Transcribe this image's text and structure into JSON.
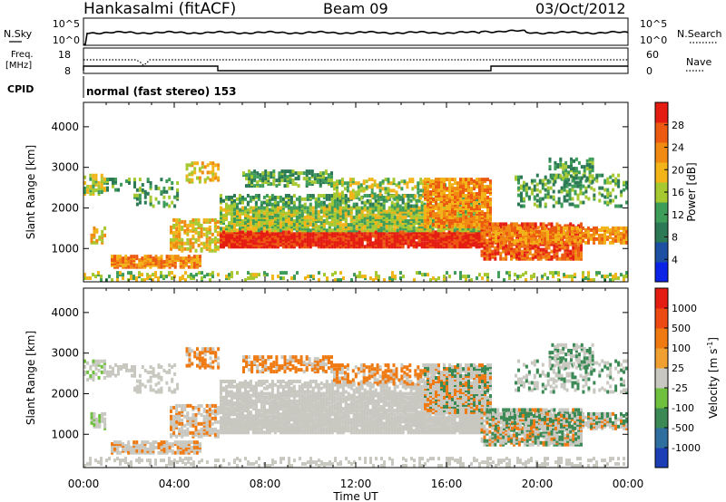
{
  "header": {
    "station": "Hankasalmi (fitACF)",
    "beam": "Beam 09",
    "date": "03/Oct/2012"
  },
  "strip_labels": {
    "nsky": "N.Sky",
    "nsearch": "N.Search",
    "freq_line1": "Freq.",
    "freq_line2": "[MHz]",
    "nave": "Nave",
    "cpid": "CPID",
    "mode": "normal (fast stereo) 153",
    "noise_ticks": [
      "10^5",
      "10^0"
    ],
    "freq_ticks": [
      "18",
      "8"
    ],
    "nave_ticks": [
      "60",
      "0"
    ]
  },
  "chart_data": [
    {
      "type": "heatmap",
      "name": "power",
      "ylabel": "Slant Range [km]",
      "xlabel": "",
      "x_ticks": [
        "00:00",
        "04:00",
        "08:00",
        "12:00",
        "16:00",
        "20:00",
        "00:00"
      ],
      "x_range_hours": [
        0,
        24
      ],
      "y_ticks": [
        1000,
        2000,
        3000,
        4000
      ],
      "ylim": [
        180,
        4600
      ],
      "colorbar": {
        "label": "Power [dB]",
        "ticks": [
          4,
          8,
          12,
          16,
          20,
          24,
          28
        ],
        "range": [
          0,
          32
        ],
        "colors": [
          "#0b23e6",
          "#1d4fa3",
          "#2b7a55",
          "#3f9d5a",
          "#a6c830",
          "#f2b418",
          "#f08a12",
          "#ec5a12",
          "#e51c12"
        ]
      },
      "grid": false
    },
    {
      "type": "heatmap",
      "name": "velocity",
      "ylabel": "Slant Range [km]",
      "xlabel": "Time UT",
      "x_ticks": [
        "00:00",
        "04:00",
        "08:00",
        "12:00",
        "16:00",
        "20:00",
        "00:00"
      ],
      "x_range_hours": [
        0,
        24
      ],
      "y_ticks": [
        1000,
        2000,
        3000,
        4000
      ],
      "ylim": [
        180,
        4600
      ],
      "colorbar": {
        "label": "Velocity [m s",
        "label_sup": "-1",
        "label_end": "]",
        "ticks": [
          "1000",
          "500",
          "100",
          "25",
          "-25",
          "-100",
          "-500",
          "-1000"
        ],
        "colors": [
          "#1d3fb5",
          "#2e6fa0",
          "#3b8a55",
          "#70c040",
          "#c8c8c0",
          "#f0a030",
          "#f07a12",
          "#ec4a12",
          "#e51c12"
        ]
      },
      "grid": false
    }
  ]
}
